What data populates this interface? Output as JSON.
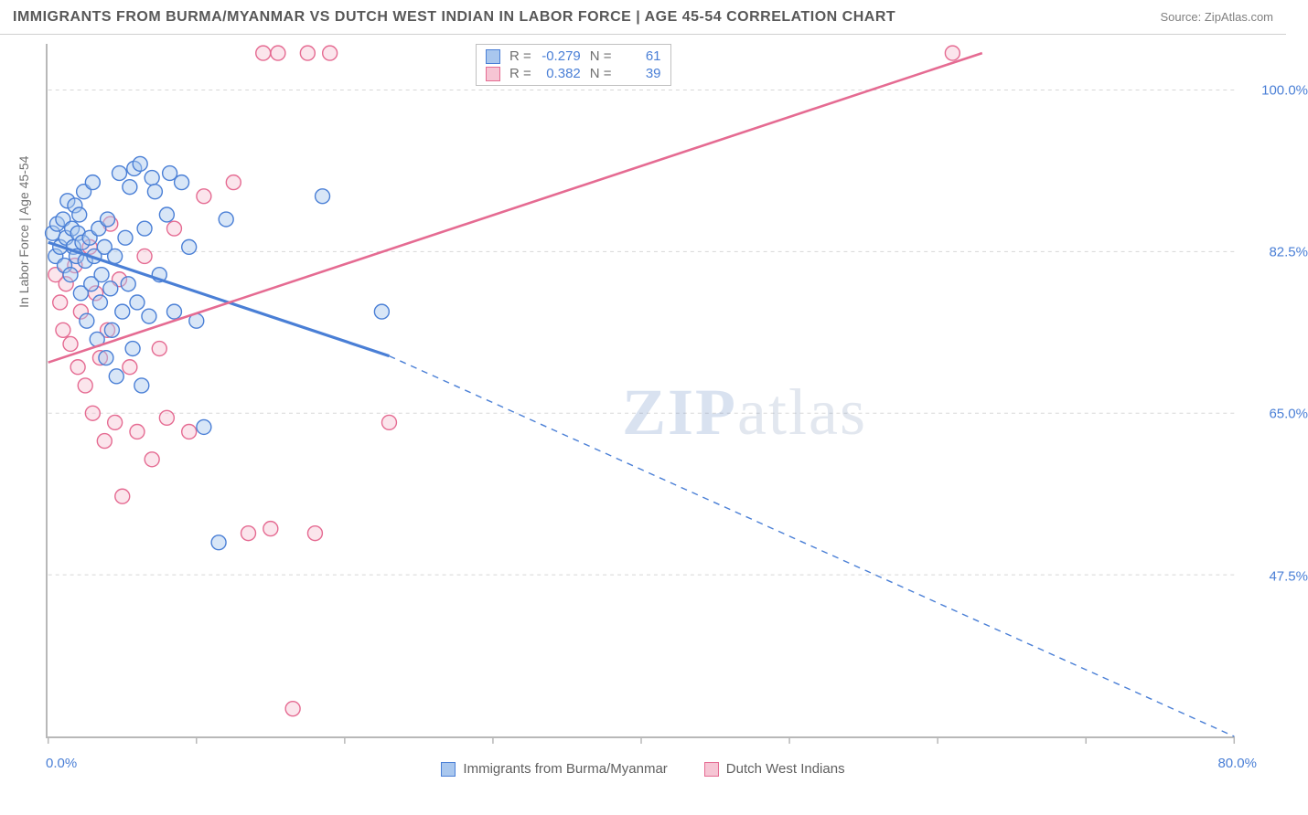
{
  "title": "IMMIGRANTS FROM BURMA/MYANMAR VS DUTCH WEST INDIAN IN LABOR FORCE | AGE 45-54 CORRELATION CHART",
  "source_label": "Source: ZipAtlas.com",
  "y_axis_title": "In Labor Force | Age 45-54",
  "watermark": {
    "bold": "ZIP",
    "rest": "atlas"
  },
  "x_axis": {
    "min": 0.0,
    "max": 80.0,
    "label_left": "0.0%",
    "label_right": "80.0%",
    "tick_positions": [
      0,
      10,
      20,
      30,
      40,
      50,
      60,
      70,
      80
    ]
  },
  "y_axis": {
    "min": 30.0,
    "max": 105.0,
    "gridlines": [
      47.5,
      65.0,
      82.5,
      100.0
    ],
    "labels": [
      "47.5%",
      "65.0%",
      "82.5%",
      "100.0%"
    ]
  },
  "colors": {
    "series_a_fill": "#a9c7ee",
    "series_a_stroke": "#4a7fd6",
    "series_b_fill": "#f6c5d4",
    "series_b_stroke": "#e56b92",
    "grid": "#d8d8d8",
    "axis": "#b8b8b8",
    "label_blue": "#4a7fd6",
    "text_gray": "#707070"
  },
  "marker": {
    "radius": 8,
    "fill_opacity": 0.45,
    "stroke_width": 1.4
  },
  "legend": {
    "series_a": "Immigrants from Burma/Myanmar",
    "series_b": "Dutch West Indians"
  },
  "stats": {
    "r_label": "R =",
    "n_label": "N =",
    "series_a": {
      "R": "-0.279",
      "N": "61"
    },
    "series_b": {
      "R": "0.382",
      "N": "39"
    }
  },
  "trend_lines": {
    "series_a": {
      "solid": {
        "x1": 0.0,
        "y1": 83.5,
        "x2": 23.0,
        "y2": 71.2
      },
      "dashed": {
        "x1": 23.0,
        "y1": 71.2,
        "x2": 80.0,
        "y2": 30.0
      },
      "stroke_width_solid": 3.2,
      "stroke_width_dashed": 1.4,
      "dash": "7,6"
    },
    "series_b": {
      "solid": {
        "x1": 0.0,
        "y1": 70.5,
        "x2": 63.0,
        "y2": 104.0
      },
      "stroke_width": 2.6
    }
  },
  "series_a_points": [
    [
      0.3,
      84.5
    ],
    [
      0.5,
      82.0
    ],
    [
      0.6,
      85.5
    ],
    [
      0.8,
      83.0
    ],
    [
      1.0,
      86.0
    ],
    [
      1.1,
      81.0
    ],
    [
      1.2,
      84.0
    ],
    [
      1.3,
      88.0
    ],
    [
      1.5,
      80.0
    ],
    [
      1.6,
      85.0
    ],
    [
      1.7,
      83.0
    ],
    [
      1.8,
      87.5
    ],
    [
      1.9,
      82.0
    ],
    [
      2.0,
      84.5
    ],
    [
      2.1,
      86.5
    ],
    [
      2.2,
      78.0
    ],
    [
      2.3,
      83.5
    ],
    [
      2.4,
      89.0
    ],
    [
      2.5,
      81.5
    ],
    [
      2.6,
      75.0
    ],
    [
      2.8,
      84.0
    ],
    [
      2.9,
      79.0
    ],
    [
      3.0,
      90.0
    ],
    [
      3.1,
      82.0
    ],
    [
      3.3,
      73.0
    ],
    [
      3.4,
      85.0
    ],
    [
      3.5,
      77.0
    ],
    [
      3.6,
      80.0
    ],
    [
      3.8,
      83.0
    ],
    [
      3.9,
      71.0
    ],
    [
      4.0,
      86.0
    ],
    [
      4.2,
      78.5
    ],
    [
      4.3,
      74.0
    ],
    [
      4.5,
      82.0
    ],
    [
      4.6,
      69.0
    ],
    [
      4.8,
      91.0
    ],
    [
      5.0,
      76.0
    ],
    [
      5.2,
      84.0
    ],
    [
      5.4,
      79.0
    ],
    [
      5.5,
      89.5
    ],
    [
      5.7,
      72.0
    ],
    [
      5.8,
      91.5
    ],
    [
      6.0,
      77.0
    ],
    [
      6.2,
      92.0
    ],
    [
      6.3,
      68.0
    ],
    [
      6.5,
      85.0
    ],
    [
      6.8,
      75.5
    ],
    [
      7.0,
      90.5
    ],
    [
      7.2,
      89.0
    ],
    [
      7.5,
      80.0
    ],
    [
      8.0,
      86.5
    ],
    [
      8.2,
      91.0
    ],
    [
      8.5,
      76.0
    ],
    [
      9.0,
      90.0
    ],
    [
      9.5,
      83.0
    ],
    [
      10.0,
      75.0
    ],
    [
      10.5,
      63.5
    ],
    [
      11.5,
      51.0
    ],
    [
      12.0,
      86.0
    ],
    [
      18.5,
      88.5
    ],
    [
      22.5,
      76.0
    ]
  ],
  "series_b_points": [
    [
      0.5,
      80.0
    ],
    [
      0.8,
      77.0
    ],
    [
      1.0,
      74.0
    ],
    [
      1.2,
      79.0
    ],
    [
      1.5,
      72.5
    ],
    [
      1.8,
      81.0
    ],
    [
      2.0,
      70.0
    ],
    [
      2.2,
      76.0
    ],
    [
      2.5,
      68.0
    ],
    [
      2.8,
      83.0
    ],
    [
      3.0,
      65.0
    ],
    [
      3.2,
      78.0
    ],
    [
      3.5,
      71.0
    ],
    [
      3.8,
      62.0
    ],
    [
      4.0,
      74.0
    ],
    [
      4.2,
      85.5
    ],
    [
      4.5,
      64.0
    ],
    [
      4.8,
      79.5
    ],
    [
      5.0,
      56.0
    ],
    [
      5.5,
      70.0
    ],
    [
      6.0,
      63.0
    ],
    [
      6.5,
      82.0
    ],
    [
      7.0,
      60.0
    ],
    [
      7.5,
      72.0
    ],
    [
      8.0,
      64.5
    ],
    [
      8.5,
      85.0
    ],
    [
      9.5,
      63.0
    ],
    [
      10.5,
      88.5
    ],
    [
      12.5,
      90.0
    ],
    [
      13.5,
      52.0
    ],
    [
      14.5,
      104.0
    ],
    [
      15.0,
      52.5
    ],
    [
      15.5,
      104.0
    ],
    [
      16.5,
      33.0
    ],
    [
      17.5,
      104.0
    ],
    [
      18.0,
      52.0
    ],
    [
      19.0,
      104.0
    ],
    [
      23.0,
      64.0
    ],
    [
      61.0,
      104.0
    ]
  ]
}
